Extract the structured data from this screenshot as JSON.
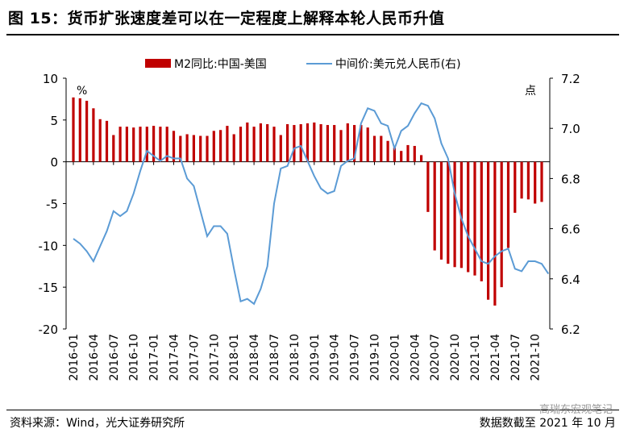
{
  "header": {
    "title": "图 15：货币扩张速度差可以在一定程度上解释本轮人民币升值"
  },
  "footer": {
    "source": "资料来源：Wind，光大证券研究所",
    "as_of": "数据数截至 2021 年 10 月",
    "watermark": "高瑞东宏观笔记"
  },
  "chart_data": {
    "type": "bar",
    "legend": [
      {
        "name": "M2同比:中国-美国",
        "type": "bar",
        "color": "#c00000"
      },
      {
        "name": "中间价:美元兑人民币(右)",
        "type": "line",
        "color": "#5b9bd5"
      }
    ],
    "legend_position": "top",
    "left_unit": "%",
    "right_unit": "点",
    "left_axis": {
      "min": -20,
      "max": 10,
      "ticks": [
        10,
        5,
        0,
        -5,
        -10,
        -15,
        -20
      ]
    },
    "right_axis": {
      "min": 6.2,
      "max": 7.2,
      "ticks": [
        "7.2",
        "7.0",
        "6.8",
        "6.6",
        "6.4",
        "6.2"
      ]
    },
    "x_tick_labels": [
      "2016-01",
      "2016-04",
      "2016-07",
      "2016-10",
      "2017-01",
      "2017-04",
      "2017-07",
      "2017-10",
      "2018-01",
      "2018-04",
      "2018-07",
      "2018-10",
      "2019-01",
      "2019-04",
      "2019-07",
      "2019-10",
      "2020-01",
      "2020-04",
      "2020-07",
      "2020-10",
      "2021-01",
      "2021-04",
      "2021-07",
      "2021-10"
    ],
    "grid": false,
    "series": [
      {
        "name": "M2同比:中国-美国",
        "values": [
          7.7,
          7.6,
          7.3,
          6.4,
          5.1,
          4.9,
          3.2,
          4.2,
          4.2,
          4.1,
          4.2,
          4.2,
          4.3,
          4.2,
          4.2,
          3.7,
          3.1,
          3.3,
          3.2,
          3.1,
          3.1,
          3.7,
          3.8,
          4.3,
          3.3,
          4.2,
          4.7,
          4.2,
          4.6,
          4.5,
          4.2,
          3.2,
          4.5,
          4.4,
          4.5,
          4.6,
          4.7,
          4.5,
          4.4,
          4.4,
          3.8,
          4.6,
          4.4,
          4.4,
          4.1,
          3.1,
          3.1,
          2.5,
          1.7,
          1.3,
          2.0,
          1.9,
          0.8,
          -6.0,
          -10.6,
          -11.7,
          -12.2,
          -12.6,
          -12.7,
          -13.2,
          -13.6,
          -14.3,
          -16.5,
          -17.2,
          -15.0,
          -10.3,
          -6.1,
          -4.4,
          -4.5,
          -5.0,
          -4.8
        ]
      },
      {
        "name": "中间价:美元兑人民币(右)",
        "values": [
          6.56,
          6.54,
          6.51,
          6.47,
          6.53,
          6.59,
          6.67,
          6.65,
          6.67,
          6.74,
          6.83,
          6.91,
          6.89,
          6.87,
          6.89,
          6.88,
          6.88,
          6.8,
          6.77,
          6.67,
          6.57,
          6.61,
          6.61,
          6.58,
          6.44,
          6.31,
          6.32,
          6.3,
          6.36,
          6.45,
          6.7,
          6.84,
          6.85,
          6.92,
          6.93,
          6.87,
          6.81,
          6.76,
          6.74,
          6.75,
          6.85,
          6.87,
          6.88,
          7.02,
          7.08,
          7.07,
          7.02,
          7.01,
          6.92,
          6.99,
          7.01,
          7.06,
          7.1,
          7.09,
          7.04,
          6.94,
          6.88,
          6.74,
          6.64,
          6.57,
          6.52,
          6.47,
          6.46,
          6.49,
          6.51,
          6.52,
          6.44,
          6.43,
          6.47,
          6.47,
          6.46,
          6.42
        ]
      }
    ]
  }
}
